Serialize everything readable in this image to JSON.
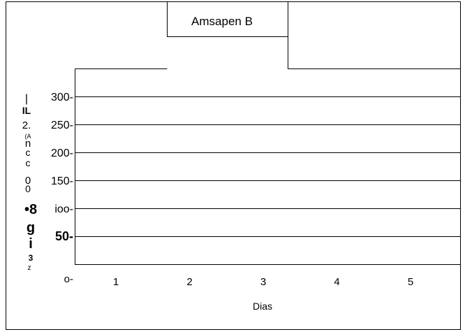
{
  "chart_data": {
    "type": "bar",
    "title": "Amsapen B",
    "xlabel": "Dias",
    "ylabel_glyphs": [
      "|",
      "IL",
      "2.",
      "(A",
      "n",
      "c",
      "c",
      "0",
      "0",
      "•8",
      "g",
      "i",
      "3",
      "z"
    ],
    "categories": [
      "1",
      "2",
      "3",
      "4",
      "5"
    ],
    "y_tick_labels": [
      "o-",
      "50-",
      "ioo-",
      "150-",
      "200-",
      "250-",
      "300-"
    ],
    "y_tick_values": [
      0,
      50,
      100,
      150,
      200,
      250,
      300
    ],
    "ylim": [
      0,
      350
    ],
    "grid": true,
    "series": [
      {
        "values": [
          null,
          null,
          null,
          null,
          null
        ]
      }
    ]
  }
}
